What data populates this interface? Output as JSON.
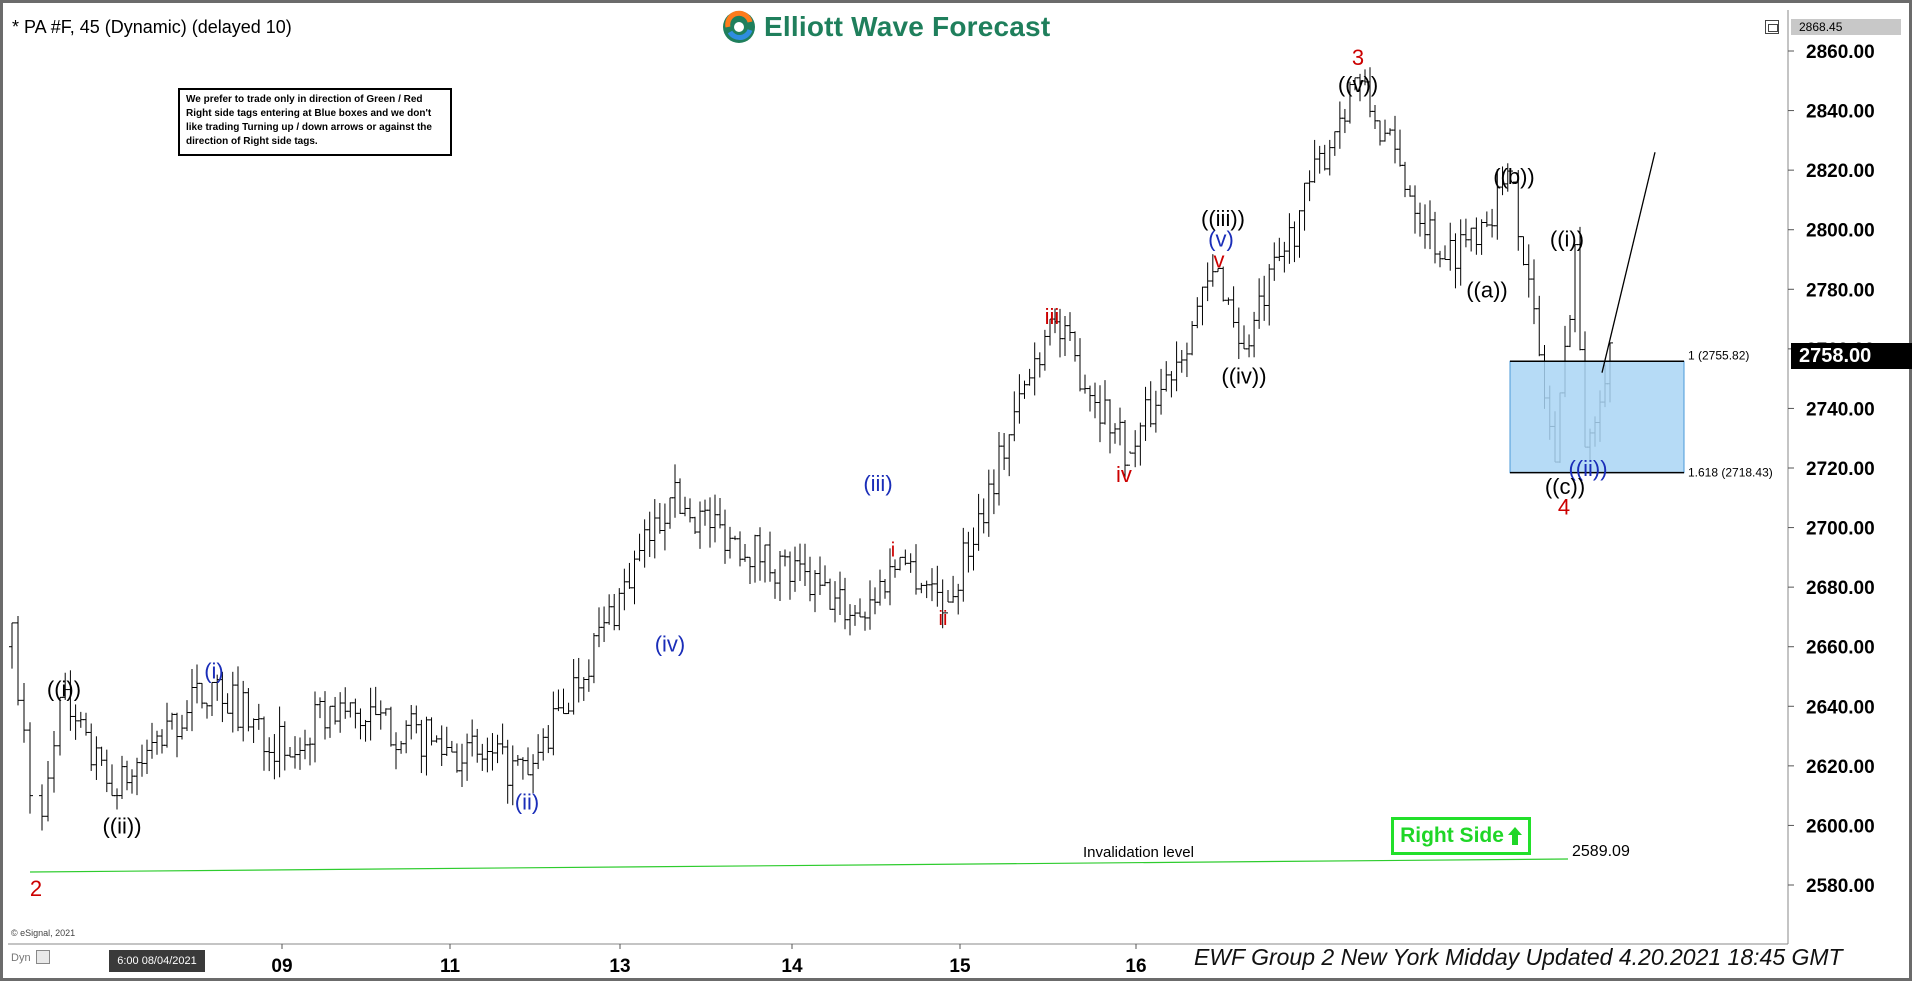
{
  "header": {
    "symbol_title": "* PA #F, 45 (Dynamic) (delayed 10)",
    "brand": "Elliott Wave Forecast"
  },
  "note": {
    "text": "We prefer to trade only in direction of Green / Red Right side tags entering at Blue boxes and we don't like trading Turning up / down arrows or against the direction of Right side tags."
  },
  "right_side_tag": {
    "label": "Right Side",
    "color": "#22e02a"
  },
  "footer": {
    "caption": "EWF Group 2 New York Midday Updated 4.20.2021 18:45 GMT",
    "copyright": "© eSignal, 2021",
    "dyn": "Dyn",
    "date_tag": "6:00 08/04/2021"
  },
  "price_axis": {
    "current_price": "2758.00",
    "top_value": "2868.45"
  },
  "chart_data": {
    "type": "ohlc",
    "title": "* PA #F, 45 (Dynamic) (delayed 10)",
    "ylim": [
      2570,
      2870
    ],
    "yticks": [
      "2580.00",
      "2600.00",
      "2620.00",
      "2640.00",
      "2660.00",
      "2680.00",
      "2700.00",
      "2720.00",
      "2740.00",
      "2760.00",
      "2780.00",
      "2800.00",
      "2820.00",
      "2840.00",
      "2860.00"
    ],
    "xticks": [
      "09",
      "11",
      "13",
      "14",
      "15",
      "16"
    ],
    "path_points": [
      [
        "08/06",
        2585
      ],
      [
        "08/06",
        2643
      ],
      [
        "08/06",
        2610
      ],
      [
        "08/09",
        2648
      ],
      [
        "08/10",
        2623
      ],
      [
        "08/11",
        2640
      ],
      [
        "08/11",
        2617
      ],
      [
        "08/13",
        2710
      ],
      [
        "08/14",
        2670
      ],
      [
        "08/14",
        2690
      ],
      [
        "08/14",
        2675
      ],
      [
        "08/15",
        2770
      ],
      [
        "08/15",
        2725
      ],
      [
        "08/16",
        2787
      ],
      [
        "08/16",
        2760
      ],
      [
        "08/17",
        2851
      ],
      [
        "08/17",
        2790
      ],
      [
        "08/18",
        2816
      ],
      [
        "08/18",
        2722
      ],
      [
        "08/18",
        2795
      ],
      [
        "08/18",
        2727
      ],
      [
        "08/18",
        2762
      ]
    ],
    "wave_labels": [
      {
        "text": "2",
        "price": 2579,
        "color": "#cc0000"
      },
      {
        "text": "((i))",
        "price": 2646,
        "color": "#000000"
      },
      {
        "text": "((ii))",
        "price": 2600,
        "color": "#000000"
      },
      {
        "text": "(i)",
        "price": 2652,
        "color": "#1a2db8"
      },
      {
        "text": "(ii)",
        "price": 2608,
        "color": "#1a2db8"
      },
      {
        "text": "(iii)",
        "price": 2715,
        "color": "#1a2db8"
      },
      {
        "text": "(iv)",
        "price": 2661,
        "color": "#1a2db8"
      },
      {
        "text": "i",
        "price": 2693,
        "color": "#cc0000"
      },
      {
        "text": "ii",
        "price": 2670,
        "color": "#cc0000"
      },
      {
        "text": "iii",
        "price": 2771,
        "color": "#cc0000"
      },
      {
        "text": "iv",
        "price": 2718,
        "color": "#cc0000"
      },
      {
        "text": "v",
        "price": 2790,
        "color": "#cc0000"
      },
      {
        "text": "(v)",
        "price": 2797,
        "color": "#1a2db8"
      },
      {
        "text": "((iii))",
        "price": 2804,
        "color": "#000000"
      },
      {
        "text": "((iv))",
        "price": 2751,
        "color": "#000000"
      },
      {
        "text": "((v))",
        "price": 2849,
        "color": "#000000"
      },
      {
        "text": "3",
        "price": 2858,
        "color": "#cc0000"
      },
      {
        "text": "((a))",
        "price": 2780,
        "color": "#000000"
      },
      {
        "text": "((b))",
        "price": 2818,
        "color": "#000000"
      },
      {
        "text": "((i))",
        "price": 2797,
        "color": "#000000"
      },
      {
        "text": "((ii))",
        "price": 2720,
        "color": "#1a2db8"
      },
      {
        "text": "((c))",
        "price": 2714,
        "color": "#000000"
      },
      {
        "text": "4",
        "price": 2707,
        "color": "#cc0000"
      }
    ],
    "blue_box": {
      "top": 2755.82,
      "bottom": 2718.43,
      "labels": [
        "1 (2755.82)",
        "1.618 (2718.43)"
      ],
      "color": "#a9d5f5"
    },
    "invalidation": {
      "label": "Invalidation level",
      "value": "2589.09",
      "color": "#2ecc2e"
    },
    "projection": {
      "from": 2752,
      "to": 2826
    }
  }
}
